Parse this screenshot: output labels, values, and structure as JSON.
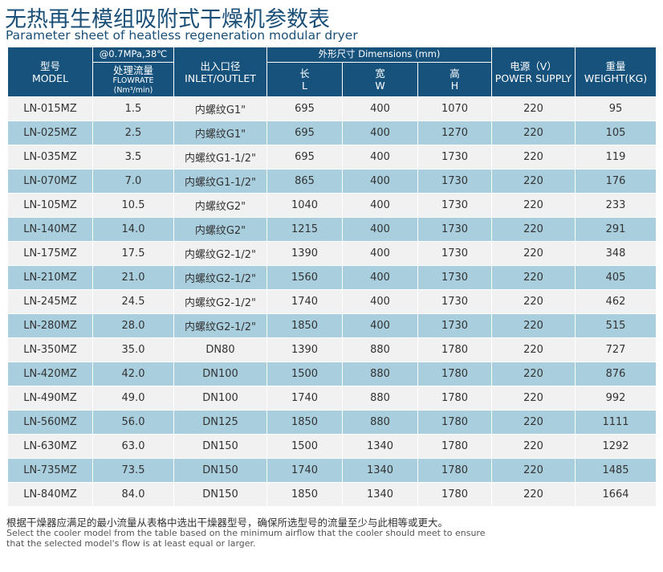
{
  "title": {
    "cn": "无热再生模组吸附式干燥机参数表",
    "en": "Parameter sheet of heatless regeneration modular dryer"
  },
  "headers": {
    "model_cn": "型号",
    "model_en": "MODEL",
    "condition": "@0.7MPa,38℃",
    "flow_cn": "处理流量",
    "flow_en": "FLOWRATE",
    "flow_unit": "(Nm³/min)",
    "inlet_cn": "出入口径",
    "inlet_en": "INLET/OUTLET",
    "dimensions": "外形尺寸 Dimensions (mm)",
    "len_cn": "长",
    "len_en": "L",
    "wid_cn": "宽",
    "wid_en": "W",
    "hgt_cn": "高",
    "hgt_en": "H",
    "power_cn": "电源（V）",
    "power_en": "POWER SUPPLY",
    "weight_cn": "重量",
    "weight_en": "WEIGHT(KG)"
  },
  "rows": [
    [
      "LN-015MZ",
      "1.5",
      "内螺纹G1\"",
      "695",
      "400",
      "1070",
      "220",
      "95"
    ],
    [
      "LN-025MZ",
      "2.5",
      "内螺纹G1\"",
      "695",
      "400",
      "1270",
      "220",
      "105"
    ],
    [
      "LN-035MZ",
      "3.5",
      "内螺纹G1-1/2\"",
      "695",
      "400",
      "1730",
      "220",
      "119"
    ],
    [
      "LN-070MZ",
      "7.0",
      "内螺纹G1-1/2\"",
      "865",
      "400",
      "1730",
      "220",
      "176"
    ],
    [
      "LN-105MZ",
      "10.5",
      "内螺纹G2\"",
      "1040",
      "400",
      "1730",
      "220",
      "233"
    ],
    [
      "LN-140MZ",
      "14.0",
      "内螺纹G2\"",
      "1215",
      "400",
      "1730",
      "220",
      "291"
    ],
    [
      "LN-175MZ",
      "17.5",
      "内螺纹G2-1/2\"",
      "1390",
      "400",
      "1730",
      "220",
      "348"
    ],
    [
      "LN-210MZ",
      "21.0",
      "内螺纹G2-1/2\"",
      "1560",
      "400",
      "1730",
      "220",
      "405"
    ],
    [
      "LN-245MZ",
      "24.5",
      "内螺纹G2-1/2\"",
      "1740",
      "400",
      "1730",
      "220",
      "462"
    ],
    [
      "LN-280MZ",
      "28.0",
      "内螺纹G2-1/2\"",
      "1850",
      "400",
      "1730",
      "220",
      "515"
    ],
    [
      "LN-350MZ",
      "35.0",
      "DN80",
      "1390",
      "880",
      "1780",
      "220",
      "727"
    ],
    [
      "LN-420MZ",
      "42.0",
      "DN100",
      "1500",
      "880",
      "1780",
      "220",
      "876"
    ],
    [
      "LN-490MZ",
      "49.0",
      "DN100",
      "1740",
      "880",
      "1780",
      "220",
      "992"
    ],
    [
      "LN-560MZ",
      "56.0",
      "DN125",
      "1850",
      "880",
      "1780",
      "220",
      "1111"
    ],
    [
      "LN-630MZ",
      "63.0",
      "DN150",
      "1500",
      "1340",
      "1780",
      "220",
      "1292"
    ],
    [
      "LN-735MZ",
      "73.5",
      "DN150",
      "1740",
      "1340",
      "1780",
      "220",
      "1485"
    ],
    [
      "LN-840MZ",
      "84.0",
      "DN150",
      "1850",
      "1340",
      "1780",
      "220",
      "1664"
    ]
  ],
  "note": {
    "cn": "根据干燥器应满足的最小流量从表格中选出干燥器型号，确保所选型号的流量至少与此相等或更大。",
    "en": "Select the cooler model from the table based on the minimum airflow that the cooler should meet to ensure that the selected model's flow is at least equal or larger."
  },
  "colors": {
    "header_bg": "#16527c",
    "row_light": "#f1f1f1",
    "row_blue": "#a9cede",
    "title": "#1a4f78"
  }
}
